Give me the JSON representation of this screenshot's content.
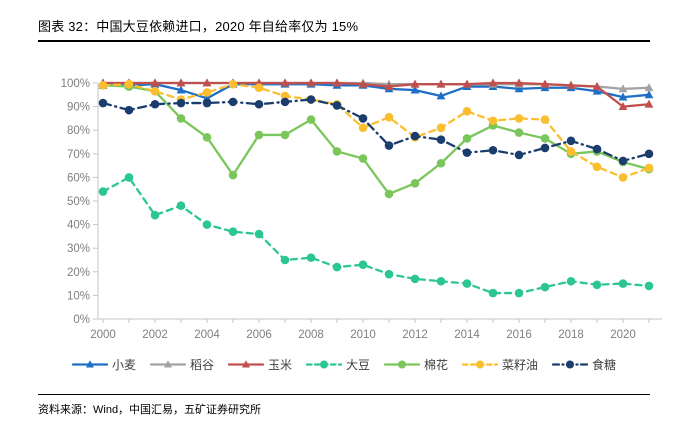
{
  "header": {
    "title": "图表 32：中国大豆依赖进口，2020 年自给率仅为 15%"
  },
  "footer": {
    "source": "资料来源：Wind，中国汇易，五矿证券研究所"
  },
  "chart_data": {
    "type": "line",
    "title": "图表 32：中国大豆依赖进口，2020 年自给率仅为 15%",
    "xlabel": "",
    "ylabel": "",
    "x": [
      2000,
      2001,
      2002,
      2003,
      2004,
      2005,
      2006,
      2007,
      2008,
      2009,
      2010,
      2011,
      2012,
      2013,
      2014,
      2015,
      2016,
      2017,
      2018,
      2019,
      2020,
      2021
    ],
    "x_tick_labels": [
      "2000",
      "2002",
      "2004",
      "2006",
      "2008",
      "2010",
      "2012",
      "2014",
      "2016",
      "2018",
      "2020"
    ],
    "y_ticks": [
      0,
      10,
      20,
      30,
      40,
      50,
      60,
      70,
      80,
      90,
      100
    ],
    "y_tick_suffix": "%",
    "ylim": [
      0,
      100
    ],
    "grid": false,
    "legend_position": "bottom",
    "axis_color": "#c6c6c6",
    "tick_label_color": "#7f7f7f",
    "series": [
      {
        "id": "wheat",
        "name": "小麦",
        "color": "#1F6FC6",
        "style": "solid",
        "marker": "triangle",
        "values": [
          99,
          99,
          99.5,
          97,
          93.5,
          99.5,
          99.5,
          99.5,
          99.5,
          99,
          99,
          97.5,
          97,
          94.5,
          98.5,
          98.5,
          97.5,
          98,
          98,
          96.5,
          94,
          95
        ]
      },
      {
        "id": "rice",
        "name": "稻谷",
        "color": "#A3A3A3",
        "style": "solid",
        "marker": "triangle",
        "values": [
          100,
          100,
          100,
          100,
          100,
          100,
          100,
          100,
          100,
          100,
          100,
          99.5,
          99.5,
          99.5,
          99.5,
          99.5,
          99.5,
          99.5,
          99,
          98.5,
          97.5,
          98
        ]
      },
      {
        "id": "corn",
        "name": "玉米",
        "color": "#C0504D",
        "style": "solid",
        "marker": "triangle",
        "values": [
          100,
          100,
          100,
          100,
          100,
          100,
          100,
          100,
          100,
          100,
          99.5,
          98.5,
          99.5,
          99.5,
          99.5,
          100,
          100,
          99.5,
          99,
          98.5,
          90,
          91
        ]
      },
      {
        "id": "soybean",
        "name": "大豆",
        "color": "#2CC694",
        "style": "dashed",
        "marker": "circle",
        "values": [
          54,
          60,
          44,
          48,
          40,
          37,
          36,
          25,
          26,
          22,
          23,
          19,
          17,
          16,
          15,
          11,
          11,
          13.5,
          16,
          14.5,
          15,
          14
        ]
      },
      {
        "id": "cotton",
        "name": "棉花",
        "color": "#7BC65A",
        "style": "solid",
        "marker": "circle",
        "values": [
          99,
          98.5,
          96.5,
          85,
          77,
          61,
          78,
          78,
          84.5,
          71,
          68,
          53,
          57.5,
          66,
          76.5,
          82,
          79,
          76.5,
          70,
          71,
          66.5,
          63.5
        ]
      },
      {
        "id": "rapeseed-oil",
        "name": "菜籽油",
        "color": "#FBBE2E",
        "style": "dashed",
        "marker": "circle",
        "values": [
          99,
          99.5,
          96.5,
          93,
          96,
          99.5,
          98,
          94.5,
          93,
          91,
          81,
          85.5,
          77,
          81,
          88,
          84,
          85,
          84.5,
          71,
          64.5,
          60,
          64
        ]
      },
      {
        "id": "sugar",
        "name": "食糖",
        "color": "#1B3D6D",
        "style": "dashdot",
        "marker": "circle",
        "values": [
          91.5,
          88.5,
          91,
          91.5,
          91.5,
          92,
          91,
          92,
          93,
          90.5,
          85,
          73.5,
          77.5,
          76,
          70.5,
          71.5,
          69.5,
          72.5,
          75.5,
          72,
          67,
          70
        ]
      }
    ]
  }
}
